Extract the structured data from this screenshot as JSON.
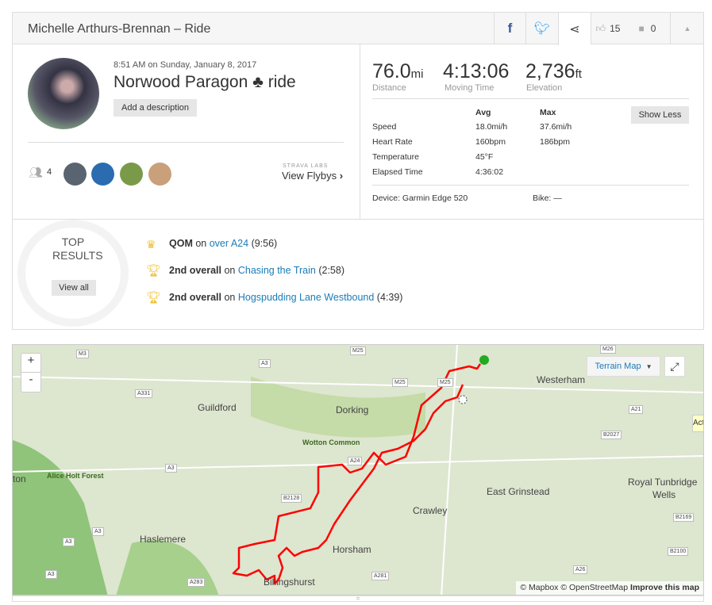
{
  "header": {
    "title": "Michelle Arthurs-Brennan – Ride",
    "kudos": "15",
    "comments": "0"
  },
  "activity": {
    "date": "8:51 AM on Sunday, January 8, 2017",
    "name": "Norwood Paragon ♣ ride",
    "add_description": "Add a description",
    "athletes_count": "4",
    "strava_labs": "STRAVA LABS",
    "view_flybys": "View Flybys"
  },
  "stats": {
    "distance": "76.0",
    "distance_unit": "mi",
    "distance_label": "Distance",
    "moving_time": "4:13:06",
    "moving_time_label": "Moving Time",
    "elevation": "2,736",
    "elevation_unit": "ft",
    "elevation_label": "Elevation",
    "avg_header": "Avg",
    "max_header": "Max",
    "show_less": "Show Less",
    "rows": [
      {
        "label": "Speed",
        "avg": "18.0mi/h",
        "max": "37.6mi/h"
      },
      {
        "label": "Heart Rate",
        "avg": "160bpm",
        "max": "186bpm"
      },
      {
        "label": "Temperature",
        "avg": "45°F",
        "max": ""
      },
      {
        "label": "Elapsed Time",
        "avg": "4:36:02",
        "max": ""
      }
    ],
    "device": "Device: Garmin Edge 520",
    "bike": "Bike: —"
  },
  "top_results": {
    "title1": "TOP",
    "title2": "RESULTS",
    "view_all": "View all",
    "items": [
      {
        "rank": "QOM",
        "on": "on",
        "segment": "over A24",
        "time": "(9:56)",
        "icon": "crown-icon"
      },
      {
        "rank": "2nd overall",
        "on": "on",
        "segment": "Chasing the Train",
        "time": "(2:58)",
        "icon": "trophy-icon"
      },
      {
        "rank": "2nd overall",
        "on": "on",
        "segment": "Hogspudding Lane Westbound",
        "time": "(4:39)",
        "icon": "trophy-icon"
      }
    ]
  },
  "map": {
    "zoom_in": "+",
    "zoom_out": "-",
    "map_type": "Terrain Map",
    "attribution": "© Mapbox © OpenStreetMap",
    "improve": "Improve this map",
    "tooltip": "Acti",
    "places": [
      "Guildford",
      "Dorking",
      "Westerham",
      "Wotton Common",
      "Alice Holt Forest",
      "ton",
      "East Grinstead",
      "Royal Tunbridge",
      "Wells",
      "Crawley",
      "Haslemere",
      "Horsham",
      "Billingshurst"
    ],
    "roads": [
      "M3",
      "A3",
      "M25",
      "M25",
      "M25",
      "M26",
      "A331",
      "A21",
      "B2027",
      "A24",
      "A3",
      "B2128",
      "A3",
      "A3",
      "A3",
      "A283",
      "A281",
      "A26",
      "B2169",
      "B2100"
    ],
    "route_color": "#ff0000",
    "start_color": "#22aa22"
  }
}
